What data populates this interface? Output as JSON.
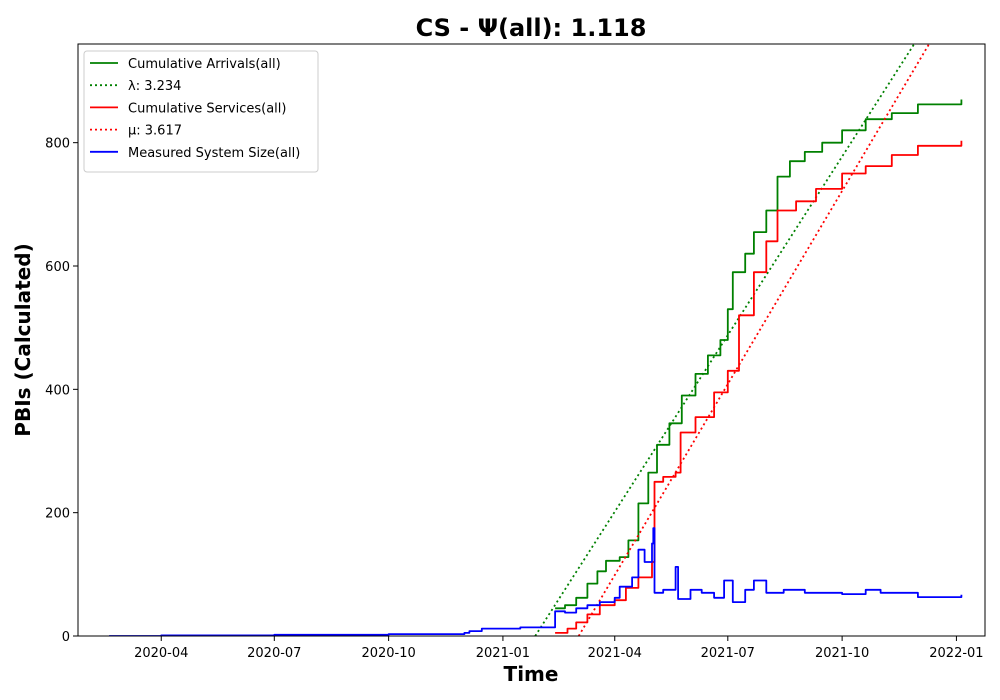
{
  "chart_data": {
    "type": "line",
    "title": "CS -  Ψ(all): 1.118",
    "xlabel": "Time",
    "ylabel": "PBIs (Calculated)",
    "x_axis_type": "date",
    "xlim": [
      "2020-01-25",
      "2022-01-24"
    ],
    "ylim": [
      0,
      960
    ],
    "x_ticks": [
      "2020-04",
      "2020-07",
      "2020-10",
      "2021-01",
      "2021-04",
      "2021-07",
      "2021-10",
      "2022-01"
    ],
    "y_ticks": [
      0,
      200,
      400,
      600,
      800
    ],
    "grid": false,
    "legend_position": "top-left",
    "series": [
      {
        "name": "Cumulative Arrivals(all)",
        "color": "#008000",
        "style": "solid",
        "points": [
          [
            "2021-02-12",
            45
          ],
          [
            "2021-02-20",
            50
          ],
          [
            "2021-03-01",
            62
          ],
          [
            "2021-03-10",
            85
          ],
          [
            "2021-03-18",
            105
          ],
          [
            "2021-03-25",
            122
          ],
          [
            "2021-04-05",
            128
          ],
          [
            "2021-04-12",
            155
          ],
          [
            "2021-04-20",
            215
          ],
          [
            "2021-04-28",
            265
          ],
          [
            "2021-05-05",
            310
          ],
          [
            "2021-05-15",
            345
          ],
          [
            "2021-05-25",
            390
          ],
          [
            "2021-06-05",
            425
          ],
          [
            "2021-06-15",
            455
          ],
          [
            "2021-06-25",
            480
          ],
          [
            "2021-07-01",
            530
          ],
          [
            "2021-07-05",
            590
          ],
          [
            "2021-07-15",
            620
          ],
          [
            "2021-07-22",
            655
          ],
          [
            "2021-08-01",
            690
          ],
          [
            "2021-08-10",
            745
          ],
          [
            "2021-08-20",
            770
          ],
          [
            "2021-09-01",
            785
          ],
          [
            "2021-09-15",
            800
          ],
          [
            "2021-10-01",
            820
          ],
          [
            "2021-10-20",
            838
          ],
          [
            "2021-11-10",
            848
          ],
          [
            "2021-12-01",
            862
          ],
          [
            "2022-01-05",
            870
          ]
        ]
      },
      {
        "name": "λ: 3.234",
        "color": "#008000",
        "style": "dotted",
        "points": [
          [
            "2021-01-27",
            0
          ],
          [
            "2021-11-28",
            960
          ]
        ]
      },
      {
        "name": "Cumulative Services(all)",
        "color": "#ff0000",
        "style": "solid",
        "points": [
          [
            "2021-02-12",
            5
          ],
          [
            "2021-02-22",
            12
          ],
          [
            "2021-03-01",
            22
          ],
          [
            "2021-03-10",
            35
          ],
          [
            "2021-03-20",
            50
          ],
          [
            "2021-04-01",
            58
          ],
          [
            "2021-04-10",
            78
          ],
          [
            "2021-04-20",
            95
          ],
          [
            "2021-05-01",
            120
          ],
          [
            "2021-05-03",
            250
          ],
          [
            "2021-05-10",
            258
          ],
          [
            "2021-05-20",
            265
          ],
          [
            "2021-05-24",
            330
          ],
          [
            "2021-06-05",
            355
          ],
          [
            "2021-06-20",
            395
          ],
          [
            "2021-07-01",
            430
          ],
          [
            "2021-07-10",
            520
          ],
          [
            "2021-07-22",
            590
          ],
          [
            "2021-08-01",
            640
          ],
          [
            "2021-08-10",
            690
          ],
          [
            "2021-08-25",
            705
          ],
          [
            "2021-09-10",
            725
          ],
          [
            "2021-10-01",
            750
          ],
          [
            "2021-10-20",
            762
          ],
          [
            "2021-11-10",
            780
          ],
          [
            "2021-12-01",
            795
          ],
          [
            "2022-01-05",
            803
          ]
        ]
      },
      {
        "name": "μ: 3.617",
        "color": "#ff0000",
        "style": "dotted",
        "points": [
          [
            "2021-03-03",
            0
          ],
          [
            "2021-12-10",
            960
          ]
        ]
      },
      {
        "name": "Measured System Size(all)",
        "color": "#0000ff",
        "style": "solid",
        "points": [
          [
            "2020-02-19",
            0
          ],
          [
            "2020-04-01",
            1
          ],
          [
            "2020-07-01",
            2
          ],
          [
            "2020-10-01",
            3
          ],
          [
            "2020-12-01",
            5
          ],
          [
            "2020-12-05",
            8
          ],
          [
            "2020-12-15",
            12
          ],
          [
            "2021-01-15",
            14
          ],
          [
            "2021-02-12",
            15
          ],
          [
            "2021-02-12",
            40
          ],
          [
            "2021-02-20",
            38
          ],
          [
            "2021-03-01",
            45
          ],
          [
            "2021-03-10",
            50
          ],
          [
            "2021-03-20",
            55
          ],
          [
            "2021-04-01",
            62
          ],
          [
            "2021-04-05",
            80
          ],
          [
            "2021-04-15",
            95
          ],
          [
            "2021-04-20",
            140
          ],
          [
            "2021-04-25",
            120
          ],
          [
            "2021-05-01",
            150
          ],
          [
            "2021-05-02",
            175
          ],
          [
            "2021-05-03",
            70
          ],
          [
            "2021-05-10",
            75
          ],
          [
            "2021-05-20",
            112
          ],
          [
            "2021-05-22",
            60
          ],
          [
            "2021-06-01",
            75
          ],
          [
            "2021-06-10",
            70
          ],
          [
            "2021-06-20",
            62
          ],
          [
            "2021-06-28",
            90
          ],
          [
            "2021-07-05",
            55
          ],
          [
            "2021-07-15",
            75
          ],
          [
            "2021-07-22",
            90
          ],
          [
            "2021-08-01",
            70
          ],
          [
            "2021-08-15",
            75
          ],
          [
            "2021-09-01",
            70
          ],
          [
            "2021-10-01",
            68
          ],
          [
            "2021-10-20",
            75
          ],
          [
            "2021-11-01",
            70
          ],
          [
            "2021-12-01",
            63
          ],
          [
            "2022-01-05",
            67
          ]
        ]
      }
    ]
  }
}
